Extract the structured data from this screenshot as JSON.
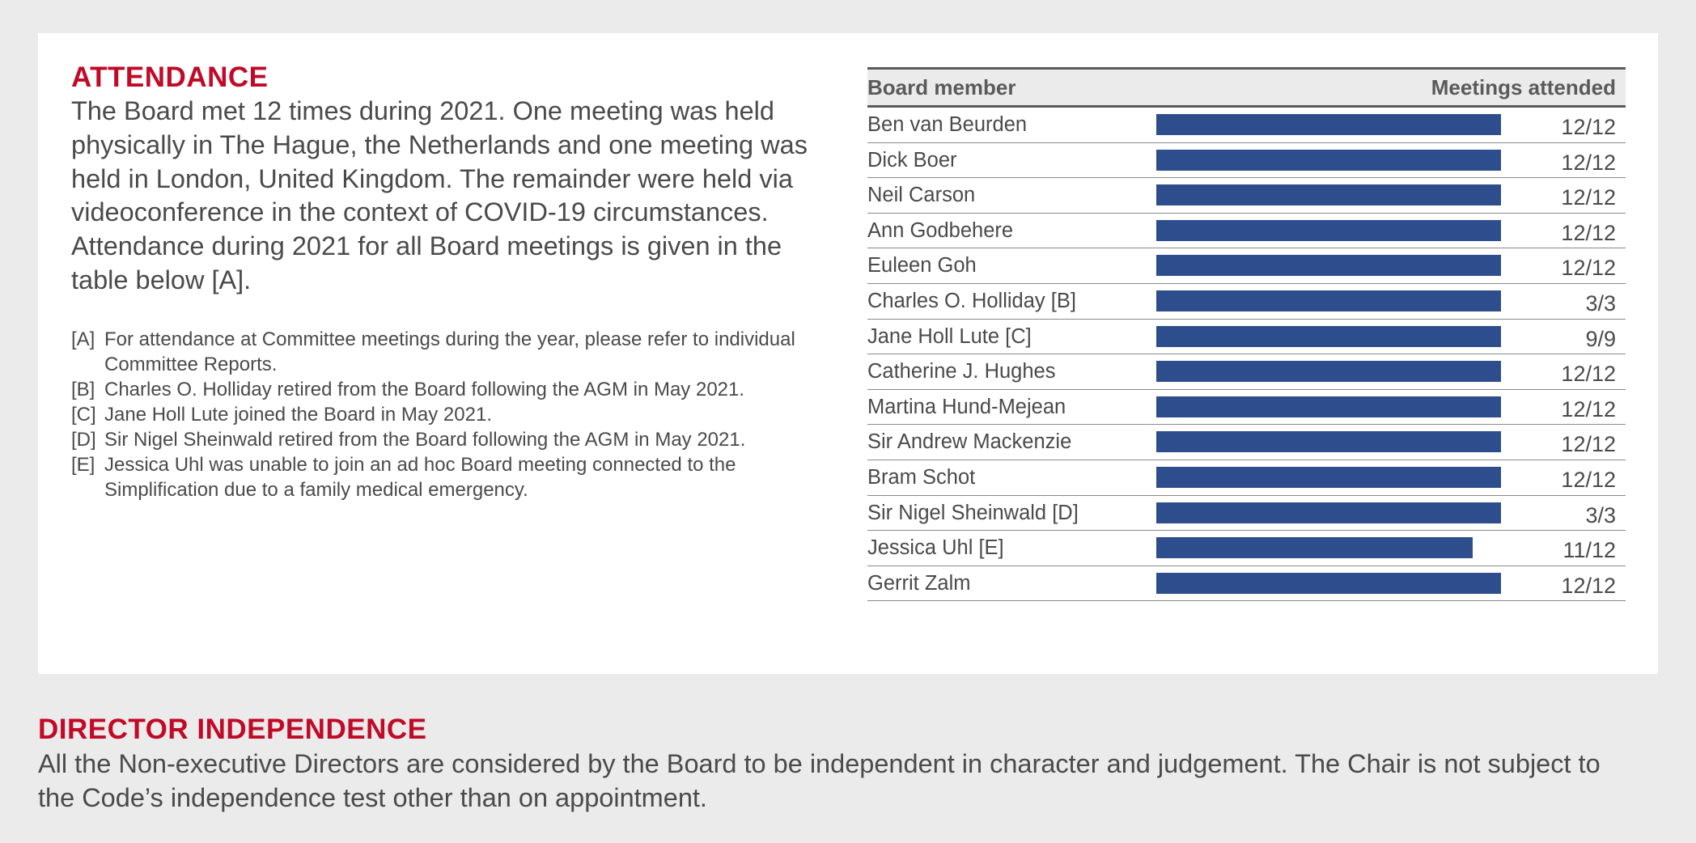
{
  "attendance": {
    "heading": "ATTENDANCE",
    "intro": "The Board met 12 times during 2021. One meeting was held physically in The Hague, the Netherlands and one meeting was held in London, United Kingdom. The remainder were held via videoconference in the context of COVID-19 circumstances. Attendance during 2021 for all Board meetings is given in the table below [A].",
    "notes": [
      {
        "key": "[A]",
        "text": "For attendance at Committee meetings during the year, please refer to individual Committee Reports."
      },
      {
        "key": "[B]",
        "text": "Charles O. Holliday retired from the Board following the AGM in May 2021."
      },
      {
        "key": "[C]",
        "text": "Jane Holl Lute joined the Board in May 2021."
      },
      {
        "key": "[D]",
        "text": "Sir Nigel Sheinwald retired from the Board following the AGM in May 2021."
      },
      {
        "key": "[E]",
        "text": "Jessica Uhl was unable to join an ad hoc Board meeting connected to the Simplification due to a family medical emergency."
      }
    ]
  },
  "table": {
    "header_member": "Board member",
    "header_meetings": "Meetings attended",
    "bar_color": "#2e4d8c",
    "rows": [
      {
        "name": "Ben van Beurden",
        "value": "12/12",
        "fraction": 1.0
      },
      {
        "name": "Dick Boer",
        "value": "12/12",
        "fraction": 1.0
      },
      {
        "name": "Neil Carson",
        "value": "12/12",
        "fraction": 1.0
      },
      {
        "name": "Ann Godbehere",
        "value": "12/12",
        "fraction": 1.0
      },
      {
        "name": "Euleen Goh",
        "value": "12/12",
        "fraction": 1.0
      },
      {
        "name": "Charles O. Holliday [B]",
        "value": "3/3",
        "fraction": 1.0
      },
      {
        "name": "Jane Holl Lute [C]",
        "value": "9/9",
        "fraction": 1.0
      },
      {
        "name": "Catherine J. Hughes",
        "value": "12/12",
        "fraction": 1.0
      },
      {
        "name": "Martina Hund-Mejean",
        "value": "12/12",
        "fraction": 1.0
      },
      {
        "name": "Sir Andrew Mackenzie",
        "value": "12/12",
        "fraction": 1.0
      },
      {
        "name": "Bram Schot",
        "value": "12/12",
        "fraction": 1.0
      },
      {
        "name": "Sir Nigel Sheinwald [D]",
        "value": "3/3",
        "fraction": 1.0
      },
      {
        "name": "Jessica Uhl [E]",
        "value": "11/12",
        "fraction": 0.9167
      },
      {
        "name": "Gerrit Zalm",
        "value": "12/12",
        "fraction": 1.0
      }
    ]
  },
  "independence": {
    "heading": "DIRECTOR INDEPENDENCE",
    "text": "All the Non-executive Directors are considered by the Board to be independent in character and judgement. The Chair is not subject to the Code’s independence test other than on appointment."
  }
}
